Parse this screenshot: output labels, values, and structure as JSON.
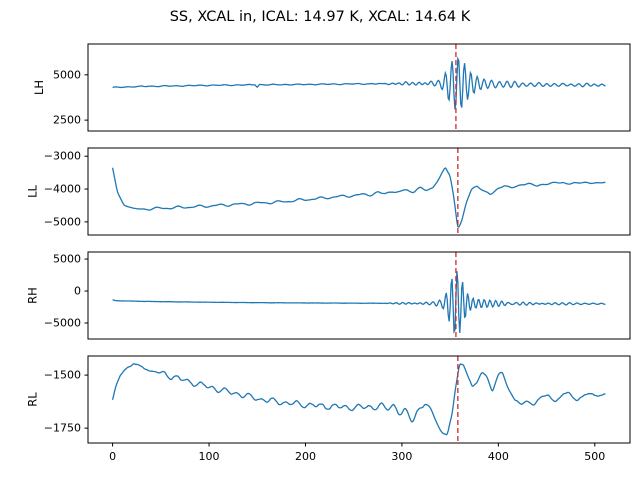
{
  "chart_data": {
    "type": "line",
    "title": "SS, XCAL in, ICAL: 14.97 K, XCAL: 14.64 K",
    "line_color": "#1f77b4",
    "marker_color": "#d62728",
    "marker_style": "dashed-vertical-line",
    "background": "#ffffff",
    "grid": false,
    "legend": false,
    "x_ticks": [
      0,
      100,
      200,
      300,
      400,
      500
    ],
    "xlim": [
      -25.5,
      536.5
    ],
    "x_points": 512,
    "subplots": [
      {
        "id": "lh",
        "ylabel": "LH",
        "yticks": [
          2500,
          5000
        ],
        "ylim": [
          1900,
          6700
        ],
        "marker_x": 356,
        "noise": 10,
        "baseline": [
          [
            0,
            4300
          ],
          [
            30,
            4360
          ],
          [
            100,
            4420
          ],
          [
            180,
            4460
          ],
          [
            260,
            4500
          ],
          [
            330,
            4520
          ],
          [
            370,
            4500
          ],
          [
            420,
            4460
          ],
          [
            470,
            4440
          ],
          [
            511,
            4430
          ]
        ],
        "wiggles": [
          {
            "amp": 18,
            "freq": 0.5,
            "phase": 0
          },
          {
            "amp": 10,
            "freq": 0.23,
            "phase": 1
          }
        ],
        "bursts": [
          {
            "center": 357,
            "sigma": 9,
            "period": 6.5,
            "amp": 1750,
            "phase": 0
          },
          {
            "center": 357,
            "sigma": 30,
            "period": 6.8,
            "amp": 380,
            "phase": 1.2
          },
          {
            "center": 400,
            "sigma": 15,
            "period": 7.5,
            "amp": 300,
            "phase": 0.5
          },
          {
            "center": 320,
            "sigma": 14,
            "period": 7.2,
            "amp": 150,
            "phase": 2.0
          },
          {
            "center": 150,
            "sigma": 1.5,
            "period": 6,
            "amp": -160,
            "phase": 1.5708
          },
          {
            "center": 440,
            "sigma": 20,
            "period": 8,
            "amp": 120,
            "phase": 0
          },
          {
            "center": 490,
            "sigma": 18,
            "period": 8,
            "amp": 90,
            "phase": 0.3
          }
        ]
      },
      {
        "id": "ll",
        "ylabel": "LL",
        "yticks": [
          -5000,
          -4000,
          -3000
        ],
        "ylim": [
          -5400,
          -2750
        ],
        "marker_x": 358,
        "noise": 6,
        "baseline": [
          [
            0,
            -3350
          ],
          [
            5,
            -4100
          ],
          [
            12,
            -4500
          ],
          [
            25,
            -4620
          ],
          [
            55,
            -4580
          ],
          [
            85,
            -4540
          ],
          [
            115,
            -4490
          ],
          [
            145,
            -4440
          ],
          [
            175,
            -4390
          ],
          [
            205,
            -4310
          ],
          [
            235,
            -4230
          ],
          [
            265,
            -4160
          ],
          [
            295,
            -4080
          ],
          [
            315,
            -4030
          ],
          [
            332,
            -3990
          ],
          [
            340,
            -3600
          ],
          [
            345,
            -3330
          ],
          [
            350,
            -3600
          ],
          [
            354,
            -4300
          ],
          [
            358,
            -5200
          ],
          [
            362,
            -4980
          ],
          [
            367,
            -4400
          ],
          [
            372,
            -4000
          ],
          [
            378,
            -3920
          ],
          [
            385,
            -4060
          ],
          [
            392,
            -4160
          ],
          [
            399,
            -4010
          ],
          [
            406,
            -3890
          ],
          [
            413,
            -3960
          ],
          [
            421,
            -3900
          ],
          [
            431,
            -3830
          ],
          [
            440,
            -3900
          ],
          [
            450,
            -3850
          ],
          [
            460,
            -3790
          ],
          [
            472,
            -3840
          ],
          [
            486,
            -3800
          ],
          [
            500,
            -3820
          ],
          [
            511,
            -3800
          ]
        ],
        "wiggles": [
          {
            "amp": 30,
            "freq": 0.3,
            "phase": 0,
            "range": [
              18,
              330
            ]
          },
          {
            "amp": 15,
            "freq": 0.55,
            "phase": 2,
            "range": [
              18,
              511
            ]
          }
        ],
        "bursts": [
          {
            "center": 300,
            "sigma": 22,
            "period": 15,
            "amp": 45,
            "phase": 0
          }
        ]
      },
      {
        "id": "rh",
        "ylabel": "RH",
        "yticks": [
          -5000,
          0,
          5000
        ],
        "ylim": [
          -7500,
          6100
        ],
        "marker_x": 356,
        "noise": 12,
        "baseline": [
          [
            0,
            -1350
          ],
          [
            3,
            -1520
          ],
          [
            40,
            -1640
          ],
          [
            90,
            -1740
          ],
          [
            150,
            -1820
          ],
          [
            220,
            -1880
          ],
          [
            300,
            -1930
          ],
          [
            380,
            -1960
          ],
          [
            460,
            -1990
          ],
          [
            511,
            -2000
          ]
        ],
        "wiggles": [
          {
            "amp": 25,
            "freq": 0.8,
            "phase": 0,
            "range": [
              270,
              511
            ]
          },
          {
            "amp": 10,
            "freq": 0.33,
            "phase": 1
          }
        ],
        "bursts": [
          {
            "center": 356,
            "sigma": 6.5,
            "period": 5.5,
            "amp": 6500,
            "phase": 0
          },
          {
            "center": 356,
            "sigma": 15,
            "period": 5.8,
            "amp": 1500,
            "phase": 1.0
          },
          {
            "center": 330,
            "sigma": 10,
            "period": 6.2,
            "amp": 420,
            "phase": 0.5
          },
          {
            "center": 390,
            "sigma": 14,
            "period": 6.0,
            "amp": 650,
            "phase": 0.2
          },
          {
            "center": 425,
            "sigma": 16,
            "period": 7.0,
            "amp": 300,
            "phase": 1.1
          },
          {
            "center": 465,
            "sigma": 18,
            "period": 7.5,
            "amp": 180,
            "phase": 0.4
          },
          {
            "center": 505,
            "sigma": 15,
            "period": 8,
            "amp": 120,
            "phase": 0
          },
          {
            "center": 300,
            "sigma": 12,
            "period": 6.5,
            "amp": 150,
            "phase": 0.8
          }
        ]
      },
      {
        "id": "rl",
        "ylabel": "RL",
        "yticks": [
          -1750,
          -1500
        ],
        "ylim": [
          -1820,
          -1410
        ],
        "marker_x": 358,
        "noise": 4,
        "baseline": [
          [
            0,
            -1620
          ],
          [
            3,
            -1565
          ],
          [
            8,
            -1500
          ],
          [
            14,
            -1460
          ],
          [
            22,
            -1450
          ],
          [
            32,
            -1465
          ],
          [
            45,
            -1485
          ],
          [
            60,
            -1505
          ],
          [
            78,
            -1530
          ],
          [
            95,
            -1550
          ],
          [
            112,
            -1570
          ],
          [
            130,
            -1590
          ],
          [
            148,
            -1610
          ],
          [
            165,
            -1622
          ],
          [
            182,
            -1632
          ],
          [
            200,
            -1640
          ],
          [
            225,
            -1648
          ],
          [
            250,
            -1652
          ],
          [
            275,
            -1648
          ],
          [
            295,
            -1655
          ],
          [
            305,
            -1690
          ],
          [
            312,
            -1705
          ],
          [
            318,
            -1660
          ],
          [
            324,
            -1635
          ],
          [
            330,
            -1665
          ],
          [
            336,
            -1720
          ],
          [
            342,
            -1770
          ],
          [
            347,
            -1785
          ],
          [
            352,
            -1690
          ],
          [
            356,
            -1550
          ],
          [
            360,
            -1440
          ],
          [
            364,
            -1445
          ],
          [
            368,
            -1500
          ],
          [
            373,
            -1560
          ],
          [
            378,
            -1540
          ],
          [
            383,
            -1480
          ],
          [
            388,
            -1500
          ],
          [
            394,
            -1585
          ],
          [
            400,
            -1500
          ],
          [
            404,
            -1485
          ],
          [
            410,
            -1555
          ],
          [
            417,
            -1620
          ],
          [
            424,
            -1645
          ],
          [
            430,
            -1615
          ],
          [
            437,
            -1640
          ],
          [
            444,
            -1610
          ],
          [
            452,
            -1590
          ],
          [
            459,
            -1625
          ],
          [
            466,
            -1600
          ],
          [
            473,
            -1580
          ],
          [
            481,
            -1615
          ],
          [
            489,
            -1600
          ],
          [
            497,
            -1585
          ],
          [
            504,
            -1595
          ],
          [
            511,
            -1590
          ]
        ],
        "wiggles": [
          {
            "amp": 10,
            "freq": 0.5,
            "phase": 0,
            "range": [
              40,
              320
            ]
          },
          {
            "amp": 6,
            "freq": 0.27,
            "phase": 1
          }
        ],
        "bursts": [
          {
            "center": 300,
            "sigma": 18,
            "period": 13,
            "amp": 15,
            "phase": 0
          }
        ]
      }
    ]
  }
}
